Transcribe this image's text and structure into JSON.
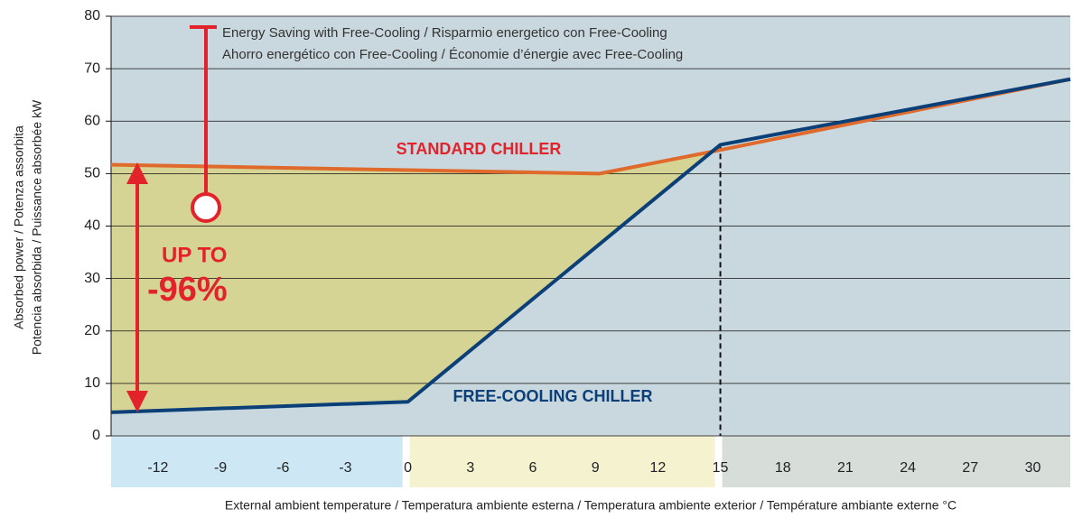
{
  "chart_data": {
    "type": "line",
    "xlabel": "External ambient temperature / Temperatura ambiente esterna / Temperatura ambiente exterior / Température ambiante externe °C",
    "ylabel": [
      "Absorbed power / Potenza assorbita",
      "Potencia absorbida / Puissance absorbée kW"
    ],
    "annotations": [
      "Energy Saving with Free-Cooling / Risparmio energetico con Free-Cooling",
      "Ahorro energético con Free-Cooling / Économie d’énergie avec Free-Cooling",
      "STANDARD CHILLER",
      "FREE-COOLING CHILLER",
      "UP TO",
      "-96%"
    ],
    "series": [
      {
        "name": "STANDARD CHILLER",
        "color": "#e0692c",
        "x": [
          -14.25,
          9.2,
          15,
          31.8
        ],
        "values": [
          51.7,
          50,
          54.5,
          68
        ]
      },
      {
        "name": "FREE-COOLING CHILLER",
        "color": "#0b3f78",
        "x": [
          -14.25,
          0,
          15,
          31.8
        ],
        "values": [
          4.5,
          6.5,
          55.5,
          68
        ]
      }
    ],
    "xlim": [
      -14.25,
      31.8
    ],
    "xticks": [
      -12,
      -9,
      -6,
      -3,
      0,
      3,
      6,
      9,
      12,
      15,
      18,
      21,
      24,
      27,
      30
    ],
    "ylim": [
      0,
      80
    ],
    "yticks": [
      0,
      10,
      20,
      30,
      40,
      50,
      60,
      70,
      80
    ],
    "grid": true
  }
}
